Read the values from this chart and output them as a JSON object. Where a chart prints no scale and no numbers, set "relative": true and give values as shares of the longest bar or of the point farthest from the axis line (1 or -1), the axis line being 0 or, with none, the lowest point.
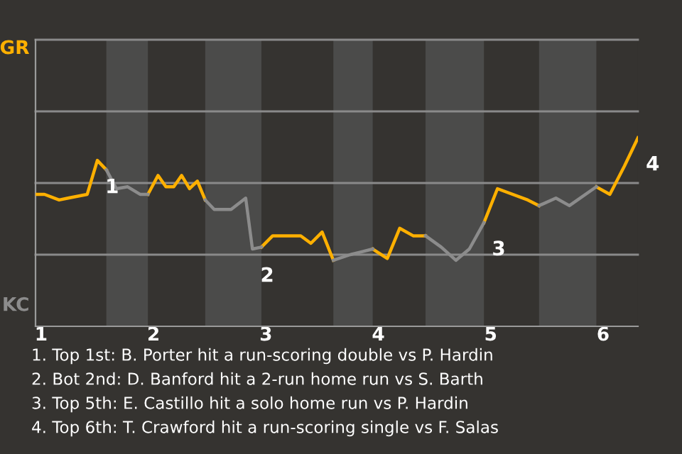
{
  "chart_data": {
    "type": "line",
    "relative": true,
    "series": [
      {
        "color": "#ffb000",
        "x": [
          0.95,
          1.03,
          1.16,
          1.24,
          1.41,
          1.5,
          1.58,
          null,
          1.95,
          2.04,
          2.11,
          2.18,
          2.25,
          2.32,
          2.39,
          2.46,
          null,
          2.96,
          3.06,
          3.31,
          3.4,
          3.5,
          3.6,
          null,
          3.95,
          4.08,
          4.19,
          4.31,
          4.42,
          null,
          4.94,
          5.06,
          5.33,
          5.43,
          null,
          5.94,
          6.06,
          6.19,
          6.31
        ],
        "values": [
          0.7,
          0.7,
          0.67,
          0.68,
          0.7,
          0.88,
          0.83,
          null,
          0.7,
          0.8,
          0.74,
          0.74,
          0.8,
          0.73,
          0.77,
          0.67,
          null,
          0.42,
          0.48,
          0.48,
          0.44,
          0.5,
          0.35,
          null,
          0.41,
          0.36,
          0.52,
          0.48,
          0.48,
          null,
          0.55,
          0.73,
          0.67,
          0.64,
          null,
          0.74,
          0.7,
          0.85,
          1
        ]
      },
      {
        "color": "#8c8c8c",
        "x": [
          1.58,
          1.67,
          1.77,
          1.88,
          1.95,
          null,
          2.46,
          2.54,
          2.69,
          2.82,
          2.88,
          2.96,
          null,
          3.6,
          3.75,
          3.95,
          null,
          4.42,
          4.56,
          4.69,
          4.81,
          4.94,
          null,
          5.43,
          5.58,
          5.7,
          5.94
        ],
        "values": [
          0.83,
          0.73,
          0.74,
          0.7,
          0.7,
          null,
          0.67,
          0.62,
          0.62,
          0.68,
          0.41,
          0.42,
          null,
          0.35,
          0.38,
          0.41,
          null,
          0.48,
          0.42,
          0.35,
          0.41,
          0.55,
          null,
          0.64,
          0.68,
          0.64,
          0.74
        ]
      }
    ],
    "xlim": [
      0.95,
      6.31
    ],
    "xticks": [
      1,
      2,
      3,
      4,
      5,
      6
    ],
    "ref_lines": [
      {
        "axis": "y",
        "value": 0.38,
        "color": "#8a8a8a"
      },
      {
        "axis": "y",
        "value": 0.76,
        "color": "#8a8a8a"
      },
      {
        "axis": "y",
        "value": 1.14,
        "color": "#8a8a8a"
      },
      {
        "axis": "y",
        "value": 1.52,
        "color": "#8a8a8a"
      }
    ],
    "legend": false,
    "marker": "none",
    "line_style": "solid",
    "bands": [
      {
        "axis": "x",
        "from": 1.58,
        "to": 1.95,
        "color": "#4b4b4a"
      },
      {
        "axis": "x",
        "from": 2.46,
        "to": 2.96,
        "color": "#4b4b4a"
      },
      {
        "axis": "x",
        "from": 3.6,
        "to": 3.95,
        "color": "#4b4b4a"
      },
      {
        "axis": "x",
        "from": 4.42,
        "to": 4.94,
        "color": "#4b4b4a"
      },
      {
        "axis": "x",
        "from": 5.43,
        "to": 5.94,
        "color": "#4b4b4a"
      }
    ],
    "annotations": [
      "GR",
      "KC",
      {
        "text": "1",
        "x": 1.5,
        "y": 0.88
      },
      {
        "text": "2",
        "x": 2.88,
        "y": 0.41
      },
      {
        "text": "3",
        "x": 4.94,
        "y": 0.55
      },
      {
        "text": "4",
        "x": 6.31,
        "y": 1
      },
      "1. Top 1st: B. Porter hit a run-scoring double vs P. Hardin",
      "2. Bot 2nd: D. Banford hit a 2-run home run vs S. Barth",
      "3. Top 5th: E. Castillo hit a solo home run vs P. Hardin",
      "4. Top 6th: T. Crawford hit a run-scoring single vs F. Salas"
    ]
  }
}
